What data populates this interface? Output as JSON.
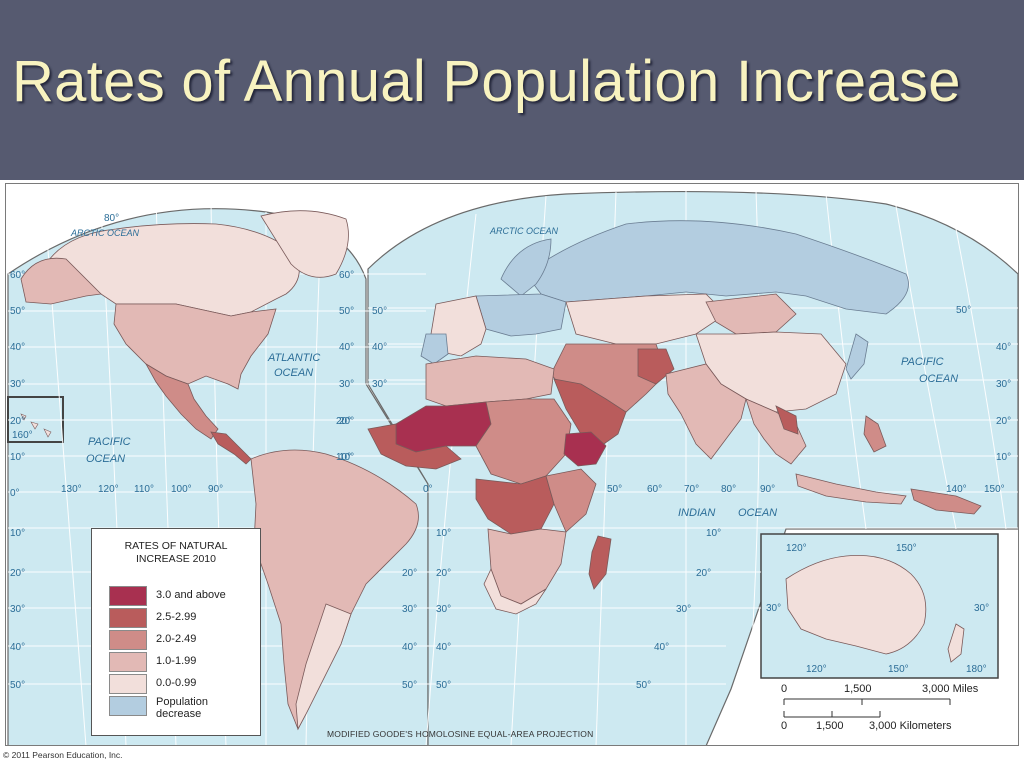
{
  "title": "Rates of Annual Population Increase",
  "legend": {
    "title_line1": "RATES OF NATURAL",
    "title_line2": "INCREASE 2010",
    "items": [
      {
        "label": "3.0 and above",
        "color": "#a83050"
      },
      {
        "label": "2.5-2.99",
        "color": "#b95c5c"
      },
      {
        "label": "2.0-2.49",
        "color": "#cf8c88"
      },
      {
        "label": "1.0-1.99",
        "color": "#e2b9b5"
      },
      {
        "label": "0.0-0.99",
        "color": "#f2dfdb"
      },
      {
        "label": "Population decrease",
        "color": "#b3cde0"
      }
    ]
  },
  "oceans": {
    "arctic_left": "ARCTIC OCEAN",
    "arctic_right": "ARCTIC OCEAN",
    "atlantic_line1": "ATLANTIC",
    "atlantic_line2": "OCEAN",
    "pacific_left_line1": "PACIFIC",
    "pacific_left_line2": "OCEAN",
    "pacific_right_line1": "PACIFIC",
    "pacific_right_line2": "OCEAN",
    "indian_line1": "INDIAN",
    "indian_line2": "OCEAN"
  },
  "graticule": {
    "top_80": "80°",
    "west_lats": [
      "60°",
      "50°",
      "40°",
      "30°",
      "20°",
      "10°",
      "0°",
      "10°",
      "20°",
      "30°",
      "40°",
      "50°"
    ],
    "mid_lats_left": [
      "60°",
      "50°",
      "40°",
      "30°",
      "20°",
      "10°"
    ],
    "mid_lats_right": [
      "50°",
      "40°",
      "30°",
      "20°",
      "10°"
    ],
    "east_lats": [
      "50°",
      "40°",
      "30°",
      "20°",
      "10°"
    ],
    "south_lats_mid": [
      "10°",
      "20°",
      "30°",
      "40°",
      "50°"
    ],
    "south_lats_atl": [
      "20°",
      "30°",
      "40°",
      "50°"
    ],
    "south_lats_ind": [
      "10°",
      "20°",
      "30°",
      "40°",
      "50°"
    ],
    "lon_160": "160°",
    "lons_americas": [
      "130°",
      "120°",
      "110°",
      "100°",
      "90°"
    ],
    "lons_asia": [
      "0°",
      "50°",
      "60°",
      "70°",
      "80°",
      "90°"
    ],
    "lons_east": [
      "140°",
      "150°"
    ],
    "aus_inset": [
      "120°",
      "150°",
      "30°",
      "30°",
      "120°",
      "150°",
      "180°"
    ]
  },
  "scale": {
    "miles": [
      "0",
      "1,500",
      "3,000 Miles"
    ],
    "km": [
      "0",
      "1,500",
      "3,000 Kilometers"
    ]
  },
  "projection": "MODIFIED GOODE'S HOMOLOSINE EQUAL-AREA PROJECTION",
  "copyright": "© 2011 Pearson Education, Inc."
}
